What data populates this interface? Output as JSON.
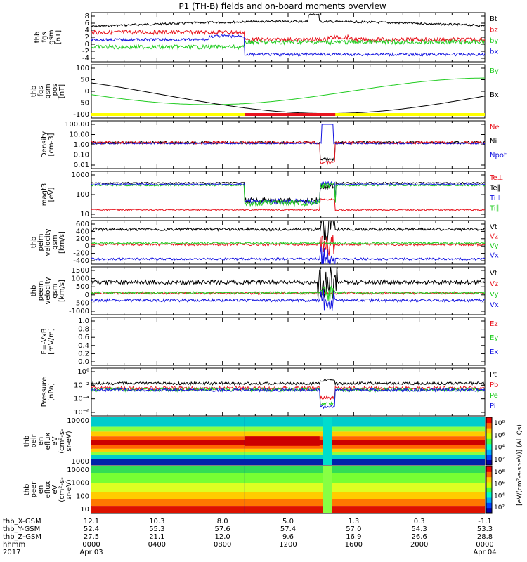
{
  "title": "P1 (TH-B) fields and on-board moments overview",
  "colors": {
    "black": "#000000",
    "red": "#e8141e",
    "green": "#22cc22",
    "blue": "#1414e0",
    "yellow": "#ffff00",
    "bar_red": "#e8141e"
  },
  "panels": [
    {
      "id": "fgs",
      "ylabel": [
        "thb",
        "fgs",
        "gsm",
        "[nT]"
      ],
      "ticks": [
        "8",
        "6",
        "4",
        "2",
        "0",
        "-2",
        "-4"
      ],
      "legend": [
        {
          "t": "Bt",
          "c": "black"
        },
        {
          "t": "bz",
          "c": "red"
        },
        {
          "t": "by",
          "c": "green"
        },
        {
          "t": "bx",
          "c": "blue"
        }
      ]
    },
    {
      "id": "pos",
      "ylabel": [
        "thb",
        "fgs",
        "gsm",
        "_pos",
        "[nT]"
      ],
      "ticks": [
        "100",
        "50",
        "0",
        "-50",
        "-100"
      ],
      "legend": [
        {
          "t": "By",
          "c": "green"
        },
        {
          "t": "Bx",
          "c": "black"
        }
      ]
    },
    {
      "id": "density",
      "ylabel": [
        "Density",
        "[cm-3]"
      ],
      "ticks": [
        "100.00",
        "10.00",
        "1.00",
        "0.10",
        "0.01"
      ],
      "legend": [
        {
          "t": "Ne",
          "c": "red"
        },
        {
          "t": "Ni",
          "c": "black"
        },
        {
          "t": "Npot",
          "c": "blue"
        }
      ]
    },
    {
      "id": "temp",
      "ylabel": [
        "magt3",
        "[eV]"
      ],
      "ticks": [
        "1000",
        "100",
        "10"
      ],
      "legend": [
        {
          "t": "Te⊥",
          "c": "red"
        },
        {
          "t": "Te∥",
          "c": "black"
        },
        {
          "t": "Ti⊥",
          "c": "blue"
        },
        {
          "t": "Ti∥",
          "c": "green"
        }
      ]
    },
    {
      "id": "vi",
      "ylabel": [
        "thb",
        "peim",
        "velocity",
        "gsm",
        "[km/s]"
      ],
      "ticks": [
        "600",
        "400",
        "200",
        "0",
        "-200",
        "-400"
      ],
      "legend": [
        {
          "t": "Vt",
          "c": "black"
        },
        {
          "t": "Vz",
          "c": "red"
        },
        {
          "t": "Vy",
          "c": "green"
        },
        {
          "t": "Vx",
          "c": "blue"
        }
      ]
    },
    {
      "id": "ve",
      "ylabel": [
        "thb",
        "peem",
        "velocity",
        "gsm",
        "[km/s]"
      ],
      "ticks": [
        "1500",
        "1000",
        "500",
        "0",
        "-500",
        "-1000"
      ],
      "legend": [
        {
          "t": "Vt",
          "c": "black"
        },
        {
          "t": "Vz",
          "c": "red"
        },
        {
          "t": "Vy",
          "c": "green"
        },
        {
          "t": "Vx",
          "c": "blue"
        }
      ]
    },
    {
      "id": "efield",
      "ylabel": [
        "E=-VxB",
        "[mV/m]"
      ],
      "ticks": [
        "1.0",
        "0.8",
        "0.6",
        "0.4",
        "0.2",
        "0.0"
      ],
      "legend": [
        {
          "t": "Ez",
          "c": "red"
        },
        {
          "t": "Ey",
          "c": "green"
        },
        {
          "t": "Ex",
          "c": "blue"
        }
      ]
    },
    {
      "id": "pressure",
      "ylabel": [
        "Pressure",
        "[nPa]"
      ],
      "ticks": [
        "10⁰",
        "10⁻²",
        "10⁻⁴",
        "10⁻⁶"
      ],
      "legend": [
        {
          "t": "Pt",
          "c": "black"
        },
        {
          "t": "Pb",
          "c": "red"
        },
        {
          "t": "Pe",
          "c": "green"
        },
        {
          "t": "Pi",
          "c": "blue"
        }
      ]
    },
    {
      "id": "ion_spec",
      "ylabel": [
        "thb",
        "peir",
        "en",
        "eflux",
        "eV",
        "(cm²-s-",
        "sr-eV)"
      ],
      "ticks": [
        "10000",
        "1000"
      ]
    },
    {
      "id": "el_spec",
      "ylabel": [
        "thb",
        "peer",
        "en",
        "eflux",
        "eV",
        "(cm²-s-",
        "sr-eV)"
      ],
      "ticks": [
        "10000",
        "1000",
        "100",
        "10"
      ]
    }
  ],
  "colorbar": {
    "label": "[eV/(cm²-s-sr-eV)] (All Qs)",
    "ticks_top": [
      "10⁸",
      "10⁶",
      "10⁴",
      "10²"
    ],
    "ticks_bottom": [
      "10⁸",
      "10⁶",
      "10⁴",
      "10²"
    ]
  },
  "footer": {
    "rows": [
      {
        "label": "thb_X-GSM",
        "values": [
          "12.1",
          "10.3",
          "8.0",
          "5.0",
          "1.3",
          "0.3",
          "-1.1"
        ]
      },
      {
        "label": "thb_Y-GSM",
        "values": [
          "52.4",
          "55.3",
          "57.6",
          "57.4",
          "57.0",
          "54.3",
          "53.3"
        ]
      },
      {
        "label": "thb_Z-GSM",
        "values": [
          "27.5",
          "21.1",
          "12.0",
          "9.6",
          "16.9",
          "26.6",
          "28.8"
        ]
      },
      {
        "label": "hhmm",
        "values": [
          "0000",
          "0400",
          "0800",
          "1200",
          "1600",
          "2000",
          "0000"
        ]
      },
      {
        "label": "2017",
        "values": [
          "Apr 03",
          "",
          "",
          "",
          "",
          "",
          "Apr 04"
        ]
      }
    ]
  },
  "chart_data": {
    "type": "line",
    "title": "P1 (TH-B) fields and on-board moments overview",
    "x_label": "hhmm",
    "x_ticks": [
      "0000",
      "0400",
      "0800",
      "1200",
      "1600",
      "2000",
      "0000"
    ],
    "series_summary": [
      {
        "panel": "fgs",
        "name": "Bt",
        "values": [
          3.5,
          4.5,
          5.5,
          3.5,
          6,
          3.5,
          3
        ]
      },
      {
        "panel": "fgs",
        "name": "bz",
        "values": [
          1.5,
          2.5,
          3,
          1,
          2,
          0.5,
          -1
        ]
      },
      {
        "panel": "fgs",
        "name": "by",
        "values": [
          -0.5,
          -1.5,
          -2,
          1,
          -1,
          -0.5,
          -1
        ]
      },
      {
        "panel": "fgs",
        "name": "bx",
        "values": [
          -1,
          0,
          0,
          -3,
          -3,
          -2,
          -2
        ]
      },
      {
        "panel": "density",
        "name": "Ni",
        "values": [
          3,
          4,
          5,
          4,
          0.01,
          5,
          5
        ]
      },
      {
        "panel": "temp",
        "name": "Te∥",
        "values": [
          500,
          500,
          20,
          20,
          10,
          500,
          500
        ]
      }
    ]
  }
}
